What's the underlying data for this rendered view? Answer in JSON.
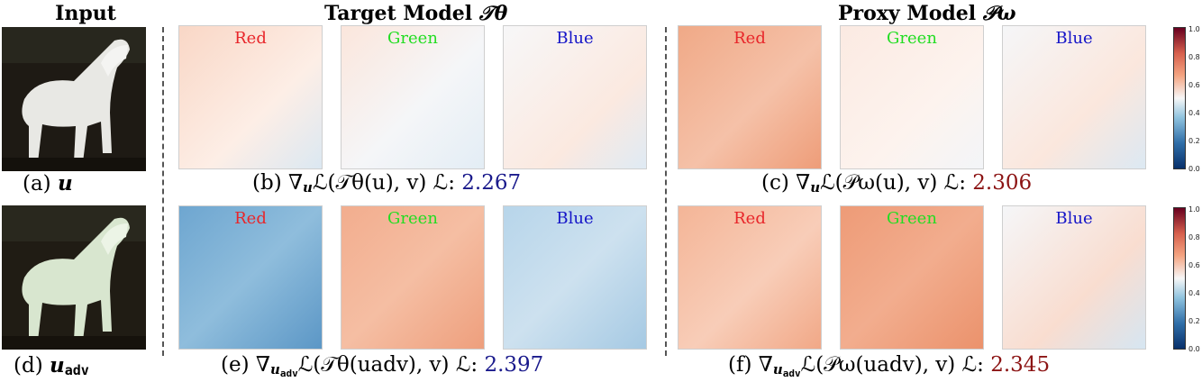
{
  "headers": {
    "input": "Input",
    "target_prefix": "Target Model ",
    "target_symbol": "𝒯θ",
    "proxy_prefix": "Proxy Model ",
    "proxy_symbol": "𝒫ω"
  },
  "channels": {
    "red": "Red",
    "green": "Green",
    "blue": "Blue"
  },
  "colors": {
    "red_label": "#e8262a",
    "green_label": "#22dd22",
    "blue_label": "#1414c8",
    "loss_blue": "#1a1a8c",
    "loss_red": "#8c1414"
  },
  "colorbar_ticks": [
    "1.0",
    "0.8",
    "0.6",
    "0.4",
    "0.2",
    "0.0"
  ],
  "captions": {
    "a": {
      "label": "(a)",
      "var": "u"
    },
    "d": {
      "label": "(d)",
      "var": "u",
      "sub": "adv"
    },
    "b": {
      "label": "(b)",
      "expr": "∇",
      "var": "u",
      "text": "ℒ(𝒯θ(u), v)",
      "loss_label": "ℒ:",
      "loss": "2.267"
    },
    "c": {
      "label": "(c)",
      "expr": "∇",
      "var": "u",
      "text": "ℒ(𝒫ω(u), v)",
      "loss_label": "ℒ:",
      "loss": "2.306"
    },
    "e": {
      "label": "(e)",
      "expr": "∇",
      "var": "u",
      "sub": "adv",
      "text": "ℒ(𝒯θ(uadv), v)",
      "loss_label": "ℒ:",
      "loss": "2.397"
    },
    "f": {
      "label": "(f)",
      "expr": "∇",
      "var": "u",
      "sub": "adv",
      "text": "ℒ(𝒫ω(uadv), v)",
      "loss_label": "ℒ:",
      "loss": "2.345"
    }
  }
}
